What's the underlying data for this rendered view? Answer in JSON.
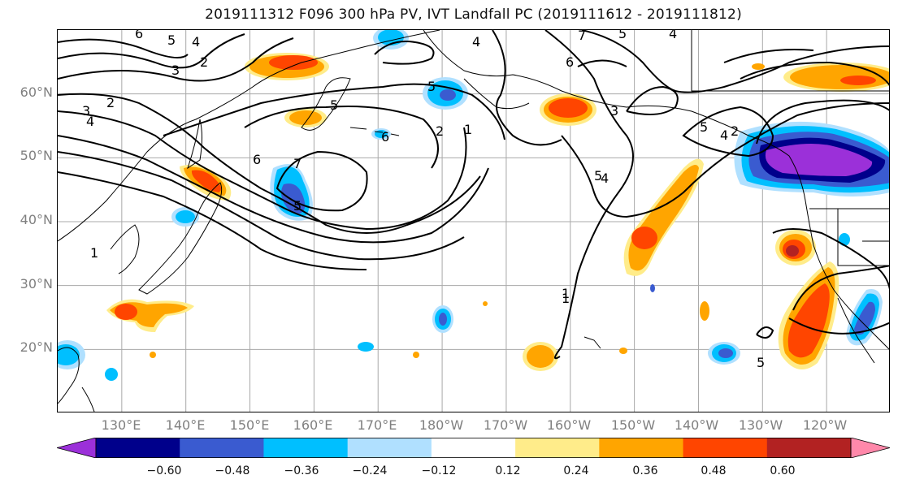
{
  "title": "2019111312 F096 300 hPa PV, IVT Landfall PC (2019111612 - 2019111812)",
  "lat_labels": [
    "60°N",
    "50°N",
    "40°N",
    "30°N",
    "20°N"
  ],
  "lon_labels": [
    "130°E",
    "140°E",
    "150°E",
    "160°E",
    "170°E",
    "180°W",
    "170°W",
    "160°W",
    "150°W",
    "140°W",
    "130°W",
    "120°W"
  ],
  "colorbar": {
    "tick_labels": [
      "−0.60",
      "−0.48",
      "−0.36",
      "−0.24",
      "−0.12",
      "0.12",
      "0.24",
      "0.36",
      "0.48",
      "0.60"
    ],
    "colors": [
      "#9b30d9",
      "#00008b",
      "#3a5bd0",
      "#00bfff",
      "#b0e0ff",
      "#ffffff",
      "#ffec8a",
      "#ffa500",
      "#ff4500",
      "#b22222",
      "#ff88aa"
    ]
  },
  "contour_labels": [
    "6",
    "5",
    "4",
    "3",
    "2",
    "2",
    "3",
    "4",
    "5",
    "1",
    "7",
    "6",
    "5",
    "4",
    "5",
    "6",
    "7",
    "5",
    "4",
    "3",
    "2",
    "1",
    "5",
    "4",
    "5",
    "2",
    "4",
    "5",
    "1",
    "1",
    "6"
  ],
  "extent": {
    "lon_min": 120,
    "lon_max": 250,
    "lat_min": 10,
    "lat_max": 70
  }
}
